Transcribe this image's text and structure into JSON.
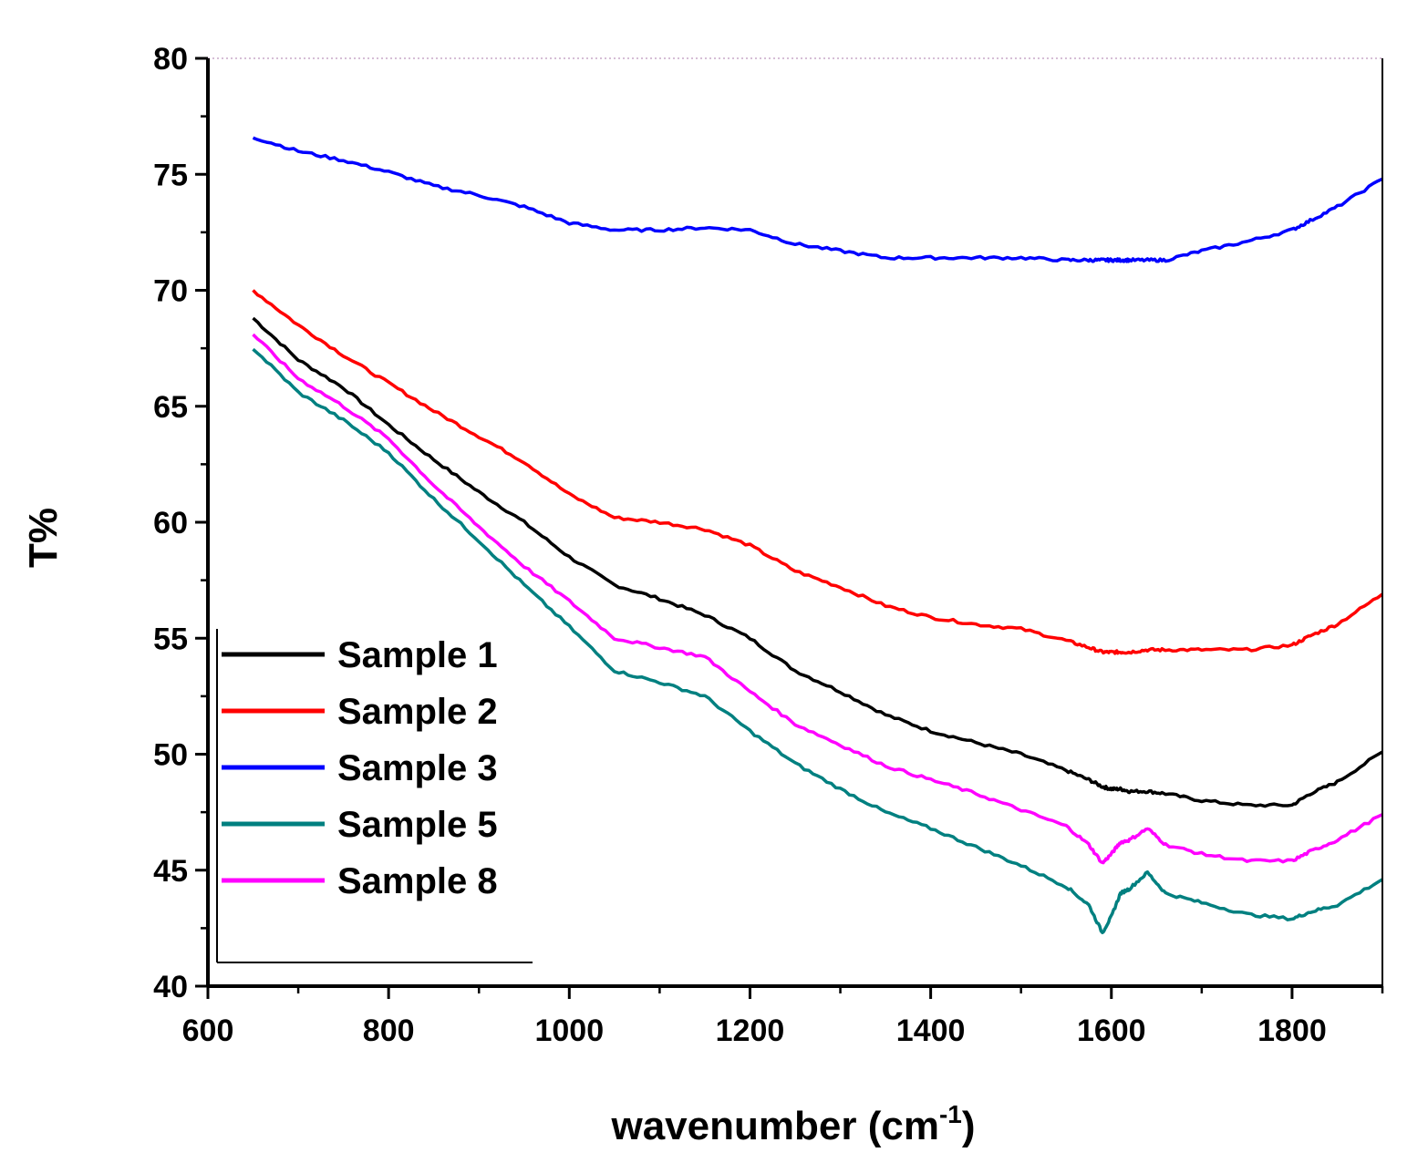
{
  "chart_data": {
    "type": "line",
    "title": "",
    "xlabel": "wavenumber (cm",
    "xlabel_sup": "-1",
    "xlabel_close": ")",
    "ylabel": "T%",
    "xlim": [
      600,
      1900
    ],
    "ylim": [
      40,
      80
    ],
    "xticks": [
      600,
      800,
      1000,
      1200,
      1400,
      1600,
      1800
    ],
    "yticks": [
      40,
      45,
      50,
      55,
      60,
      65,
      70,
      75,
      80
    ],
    "legend_position": "bottom-left",
    "x": [
      650,
      700,
      750,
      800,
      850,
      900,
      950,
      1000,
      1050,
      1100,
      1150,
      1200,
      1250,
      1300,
      1350,
      1400,
      1450,
      1500,
      1550,
      1575,
      1590,
      1600,
      1610,
      1620,
      1640,
      1660,
      1700,
      1750,
      1800,
      1820,
      1850,
      1900
    ],
    "series": [
      {
        "name": "Sample 1",
        "color": "#000000",
        "values": [
          68.8,
          67.0,
          65.8,
          64.2,
          62.7,
          61.3,
          60.0,
          58.5,
          57.3,
          56.7,
          56.0,
          55.0,
          53.6,
          52.7,
          51.7,
          51.0,
          50.5,
          50.0,
          49.3,
          48.9,
          48.6,
          48.5,
          48.5,
          48.4,
          48.4,
          48.3,
          48.0,
          47.8,
          47.8,
          48.3,
          48.8,
          50.1
        ]
      },
      {
        "name": "Sample 2",
        "color": "#ff0000",
        "values": [
          70.0,
          68.5,
          67.2,
          66.0,
          64.8,
          63.7,
          62.6,
          61.2,
          60.2,
          60.0,
          59.7,
          59.0,
          57.9,
          57.2,
          56.4,
          55.9,
          55.6,
          55.4,
          54.9,
          54.6,
          54.4,
          54.4,
          54.4,
          54.4,
          54.5,
          54.5,
          54.5,
          54.5,
          54.7,
          55.1,
          55.6,
          56.9
        ]
      },
      {
        "name": "Sample 3",
        "color": "#0000ff",
        "values": [
          76.6,
          76.0,
          75.6,
          75.1,
          74.5,
          74.1,
          73.6,
          72.9,
          72.6,
          72.6,
          72.7,
          72.6,
          72.0,
          71.7,
          71.4,
          71.4,
          71.4,
          71.4,
          71.3,
          71.3,
          71.3,
          71.3,
          71.3,
          71.3,
          71.3,
          71.3,
          71.7,
          72.1,
          72.6,
          73.0,
          73.6,
          74.8
        ]
      },
      {
        "name": "Sample 5",
        "color": "#008080",
        "values": [
          67.5,
          65.6,
          64.4,
          63.0,
          61.0,
          59.2,
          57.3,
          55.5,
          53.6,
          53.1,
          52.5,
          51.0,
          49.6,
          48.5,
          47.5,
          46.8,
          46.0,
          45.2,
          44.3,
          43.5,
          42.3,
          43.0,
          44.0,
          44.2,
          44.9,
          44.0,
          43.6,
          43.1,
          42.9,
          43.2,
          43.5,
          44.6
        ]
      },
      {
        "name": "Sample 8",
        "color": "#ff00ff",
        "values": [
          68.1,
          66.2,
          65.0,
          63.6,
          61.6,
          59.8,
          58.1,
          56.6,
          55.0,
          54.6,
          54.2,
          52.7,
          51.3,
          50.4,
          49.5,
          48.9,
          48.3,
          47.6,
          46.9,
          46.1,
          45.3,
          45.7,
          46.2,
          46.3,
          46.8,
          46.1,
          45.7,
          45.4,
          45.4,
          45.8,
          46.3,
          47.4
        ]
      }
    ]
  }
}
